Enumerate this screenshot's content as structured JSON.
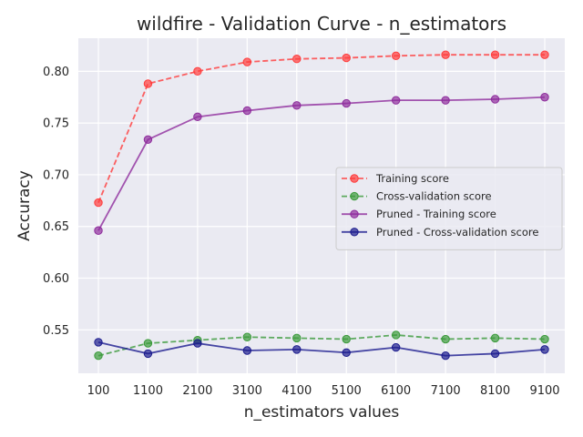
{
  "chart_data": {
    "type": "line",
    "title": "wildfire - Validation Curve - n_estimators",
    "xlabel": "n_estimators values",
    "ylabel": "Accuracy",
    "categories": [
      "100",
      "1100",
      "2100",
      "3100",
      "4100",
      "5100",
      "6100",
      "7100",
      "8100",
      "9100"
    ],
    "ylim": [
      0.508,
      0.832
    ],
    "yticks": [
      "0.55",
      "0.60",
      "0.65",
      "0.70",
      "0.75",
      "0.80"
    ],
    "ytick_values": [
      0.55,
      0.6,
      0.65,
      0.7,
      0.75,
      0.8
    ],
    "grid": true,
    "legend_position": "center-right",
    "series": [
      {
        "name": "Training score",
        "color": "#ff3b3b",
        "linestyle": "dashed",
        "values": [
          0.673,
          0.788,
          0.8,
          0.809,
          0.812,
          0.813,
          0.815,
          0.816,
          0.816,
          0.816
        ]
      },
      {
        "name": "Cross-validation score",
        "color": "#3a9a3a",
        "linestyle": "dashed",
        "values": [
          0.525,
          0.537,
          0.54,
          0.543,
          0.542,
          0.541,
          0.545,
          0.541,
          0.542,
          0.541
        ]
      },
      {
        "name": "Pruned - Training score",
        "color": "#8e2c9c",
        "linestyle": "solid",
        "values": [
          0.646,
          0.734,
          0.756,
          0.762,
          0.767,
          0.769,
          0.772,
          0.772,
          0.773,
          0.775
        ]
      },
      {
        "name": "Pruned - Cross-validation score",
        "color": "#1c1c8e",
        "linestyle": "solid",
        "values": [
          0.538,
          0.527,
          0.537,
          0.53,
          0.531,
          0.528,
          0.533,
          0.525,
          0.527,
          0.531
        ]
      }
    ]
  }
}
